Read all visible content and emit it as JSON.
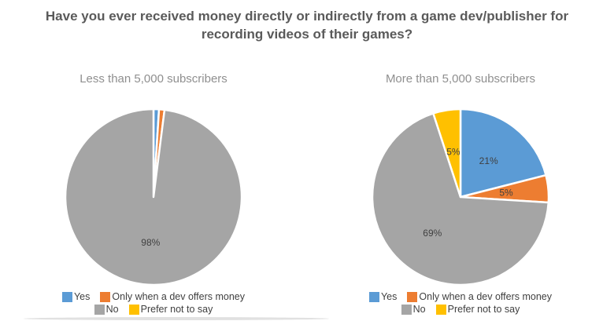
{
  "title": "Have you ever received money directly or indirectly from a game dev/publisher for recording videos of their games?",
  "colors": {
    "yes": "#5B9BD5",
    "only_when_dev_offers": "#ED7D31",
    "no": "#A5A5A5",
    "prefer_not_to_say": "#FFC000",
    "title_text": "#5a5a5a",
    "subtitle_text": "#8f8f8f",
    "label_text": "#404040",
    "slice_border": "#ffffff"
  },
  "legend": {
    "items": [
      {
        "label": "Yes",
        "color": "#5B9BD5"
      },
      {
        "label": "Only when a dev offers money",
        "color": "#ED7D31"
      },
      {
        "label": "No",
        "color": "#A5A5A5"
      },
      {
        "label": "Prefer not to say",
        "color": "#FFC000"
      }
    ]
  },
  "chart_data": [
    {
      "type": "pie",
      "title": "Less than 5,000 subscribers",
      "categories": [
        "Yes",
        "Only when a dev offers money",
        "No",
        "Prefer not to say"
      ],
      "values": [
        1,
        1,
        98,
        0
      ],
      "slice_labels": [
        "",
        "",
        "98%",
        ""
      ],
      "colors": [
        "#5B9BD5",
        "#ED7D31",
        "#A5A5A5",
        "#FFC000"
      ],
      "start_angle_deg": 0,
      "direction": "clockwise",
      "legend_position": "bottom"
    },
    {
      "type": "pie",
      "title": "More than 5,000 subscribers",
      "categories": [
        "Yes",
        "Only when a dev offers money",
        "No",
        "Prefer not to say"
      ],
      "values": [
        21,
        5,
        69,
        5
      ],
      "slice_labels": [
        "21%",
        "5%",
        "69%",
        "5%"
      ],
      "colors": [
        "#5B9BD5",
        "#ED7D31",
        "#A5A5A5",
        "#FFC000"
      ],
      "start_angle_deg": 0,
      "direction": "clockwise",
      "legend_position": "bottom"
    }
  ]
}
